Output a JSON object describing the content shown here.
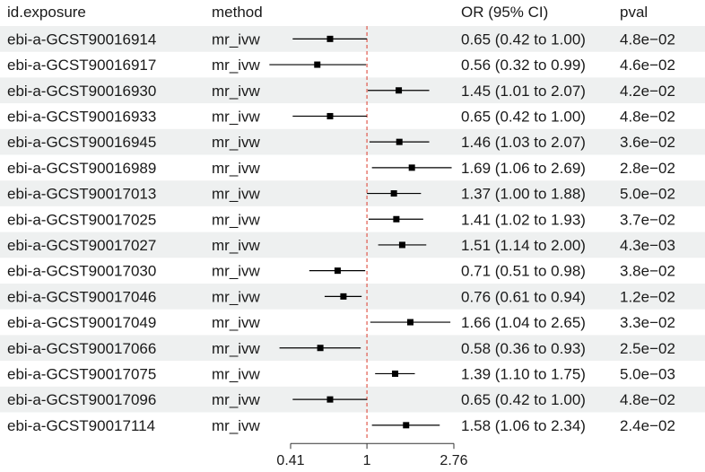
{
  "chart_data": {
    "type": "forest",
    "columns": {
      "exposure": "id.exposure",
      "method": "method",
      "or_ci": "OR (95% CI)",
      "pval": "pval"
    },
    "rows": [
      {
        "exposure": "ebi-a-GCST90016914",
        "method": "mr_ivw",
        "or": 0.65,
        "lo": 0.42,
        "hi": 1.0,
        "or_ci": "0.65 (0.42 to 1.00)",
        "pval": "4.8e−02"
      },
      {
        "exposure": "ebi-a-GCST90016917",
        "method": "mr_ivw",
        "or": 0.56,
        "lo": 0.32,
        "hi": 0.99,
        "or_ci": "0.56 (0.32 to 0.99)",
        "pval": "4.6e−02"
      },
      {
        "exposure": "ebi-a-GCST90016930",
        "method": "mr_ivw",
        "or": 1.45,
        "lo": 1.01,
        "hi": 2.07,
        "or_ci": "1.45 (1.01 to 2.07)",
        "pval": "4.2e−02"
      },
      {
        "exposure": "ebi-a-GCST90016933",
        "method": "mr_ivw",
        "or": 0.65,
        "lo": 0.42,
        "hi": 1.0,
        "or_ci": "0.65 (0.42 to 1.00)",
        "pval": "4.8e−02"
      },
      {
        "exposure": "ebi-a-GCST90016945",
        "method": "mr_ivw",
        "or": 1.46,
        "lo": 1.03,
        "hi": 2.07,
        "or_ci": "1.46 (1.03 to 2.07)",
        "pval": "3.6e−02"
      },
      {
        "exposure": "ebi-a-GCST90016989",
        "method": "mr_ivw",
        "or": 1.69,
        "lo": 1.06,
        "hi": 2.69,
        "or_ci": "1.69 (1.06 to 2.69)",
        "pval": "2.8e−02"
      },
      {
        "exposure": "ebi-a-GCST90017013",
        "method": "mr_ivw",
        "or": 1.37,
        "lo": 1.0,
        "hi": 1.88,
        "or_ci": "1.37 (1.00 to 1.88)",
        "pval": "5.0e−02"
      },
      {
        "exposure": "ebi-a-GCST90017025",
        "method": "mr_ivw",
        "or": 1.41,
        "lo": 1.02,
        "hi": 1.93,
        "or_ci": "1.41 (1.02 to 1.93)",
        "pval": "3.7e−02"
      },
      {
        "exposure": "ebi-a-GCST90017027",
        "method": "mr_ivw",
        "or": 1.51,
        "lo": 1.14,
        "hi": 2.0,
        "or_ci": "1.51 (1.14 to 2.00)",
        "pval": "4.3e−03"
      },
      {
        "exposure": "ebi-a-GCST90017030",
        "method": "mr_ivw",
        "or": 0.71,
        "lo": 0.51,
        "hi": 0.98,
        "or_ci": "0.71 (0.51 to 0.98)",
        "pval": "3.8e−02"
      },
      {
        "exposure": "ebi-a-GCST90017046",
        "method": "mr_ivw",
        "or": 0.76,
        "lo": 0.61,
        "hi": 0.94,
        "or_ci": "0.76 (0.61 to 0.94)",
        "pval": "1.2e−02"
      },
      {
        "exposure": "ebi-a-GCST90017049",
        "method": "mr_ivw",
        "or": 1.66,
        "lo": 1.04,
        "hi": 2.65,
        "or_ci": "1.66 (1.04 to 2.65)",
        "pval": "3.3e−02"
      },
      {
        "exposure": "ebi-a-GCST90017066",
        "method": "mr_ivw",
        "or": 0.58,
        "lo": 0.36,
        "hi": 0.93,
        "or_ci": "0.58 (0.36 to 0.93)",
        "pval": "2.5e−02"
      },
      {
        "exposure": "ebi-a-GCST90017075",
        "method": "mr_ivw",
        "or": 1.39,
        "lo": 1.1,
        "hi": 1.75,
        "or_ci": "1.39 (1.10 to 1.75)",
        "pval": "5.0e−03"
      },
      {
        "exposure": "ebi-a-GCST90017096",
        "method": "mr_ivw",
        "or": 0.65,
        "lo": 0.42,
        "hi": 1.0,
        "or_ci": "0.65 (0.42 to 1.00)",
        "pval": "4.8e−02"
      },
      {
        "exposure": "ebi-a-GCST90017114",
        "method": "mr_ivw",
        "or": 1.58,
        "lo": 1.06,
        "hi": 2.34,
        "or_ci": "1.58 (1.06 to 2.34)",
        "pval": "2.4e−02"
      }
    ],
    "x_axis": {
      "scale": "log",
      "range": [
        0.41,
        2.76
      ],
      "ticks": [
        0.41,
        1,
        2.76
      ],
      "tick_labels": [
        "0.41",
        "1",
        "2.76"
      ],
      "reference_line": 1
    },
    "colors": {
      "stripe": "#eef0f0",
      "marker": "#000000",
      "reference_line": "#e05a4e",
      "text": "#1a1a1a"
    }
  }
}
